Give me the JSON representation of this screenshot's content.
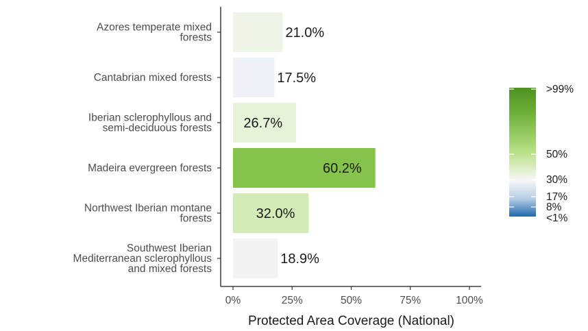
{
  "chart_data": {
    "type": "bar",
    "orientation": "horizontal",
    "categories": [
      [
        "Azores temperate mixed",
        "forests"
      ],
      [
        "Cantabrian mixed forests"
      ],
      [
        "Iberian sclerophyllous and",
        "semi-deciduous forests"
      ],
      [
        "Madeira evergreen forests"
      ],
      [
        "Northwest Iberian montane",
        "forests"
      ],
      [
        "Southwest Iberian",
        "Mediterranean sclerophyllous",
        "and mixed forests"
      ]
    ],
    "values": [
      21.0,
      17.5,
      26.7,
      60.2,
      32.0,
      18.9
    ],
    "value_labels": [
      "21.0%",
      "17.5%",
      "26.7%",
      "60.2%",
      "32.0%",
      "18.9%"
    ],
    "bar_colors": [
      "#eef5e6",
      "#eef2f6",
      "#e6f3d9",
      "#86c34a",
      "#d3ebb7",
      "#f3f3f3"
    ],
    "xlim": [
      0,
      100
    ],
    "x_ticks": [
      0,
      25,
      50,
      75,
      100
    ],
    "x_tick_labels": [
      "0%",
      "25%",
      "50%",
      "75%",
      "100%"
    ],
    "xlabel": "Protected Area Coverage (National)",
    "ylabel": "",
    "grid": false,
    "legend": {
      "placement": "right",
      "type": "colorbar",
      "labels": [
        ">99%",
        "50%",
        "30%",
        "17%",
        "8%",
        "<1%"
      ],
      "stops": [
        {
          "offset": 0,
          "color": "#4d9221"
        },
        {
          "offset": 0.2,
          "color": "#6fb03a"
        },
        {
          "offset": 0.5,
          "color": "#b8e186"
        },
        {
          "offset": 0.72,
          "color": "#f7f7f7"
        },
        {
          "offset": 0.86,
          "color": "#b7cfe6"
        },
        {
          "offset": 1,
          "color": "#2166ac"
        }
      ]
    }
  }
}
